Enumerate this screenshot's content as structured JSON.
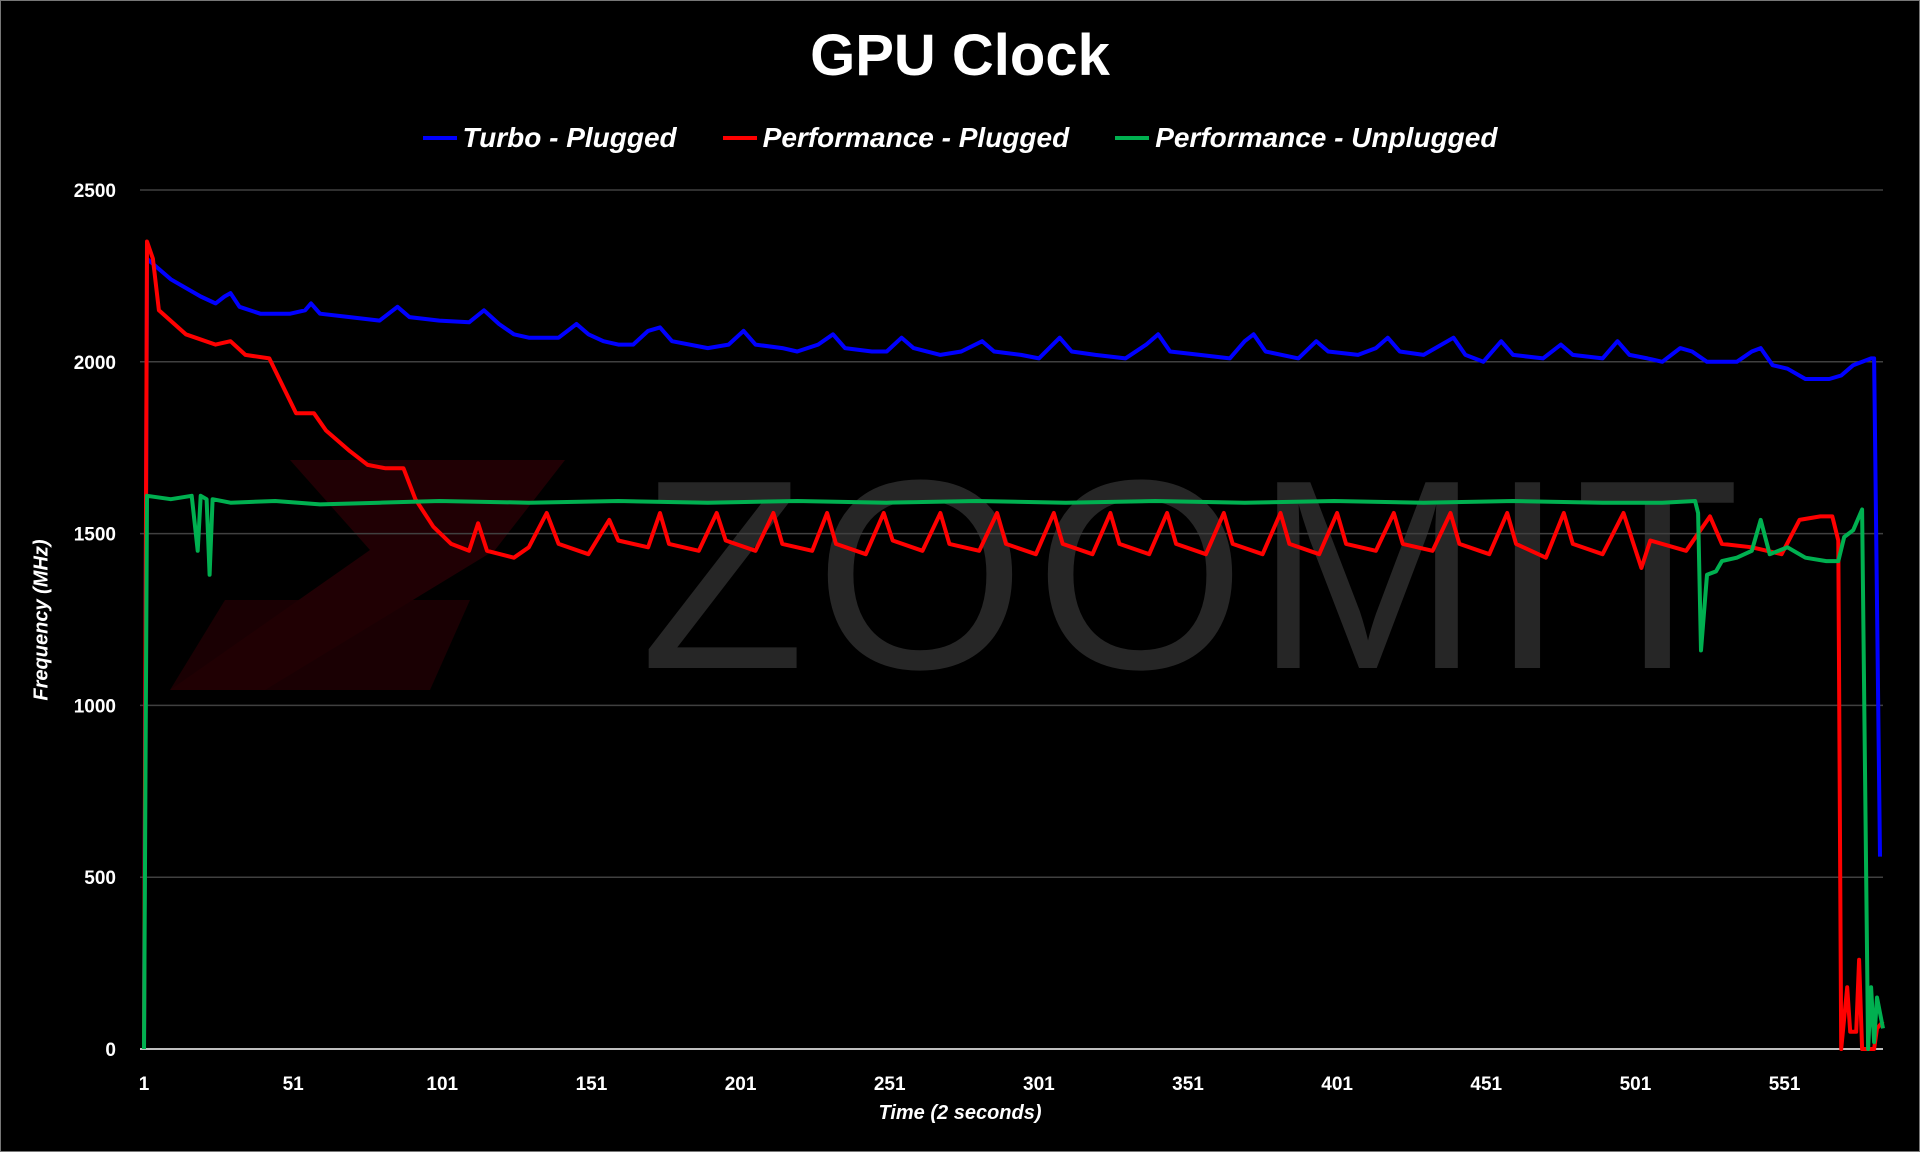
{
  "chart_data": {
    "type": "line",
    "title": "GPU Clock",
    "xlabel": "Time (2 seconds)",
    "ylabel": "Frequency (MHz)",
    "xlim": [
      1,
      584
    ],
    "ylim": [
      0,
      2500
    ],
    "x_ticks": [
      "1",
      "51",
      "101",
      "151",
      "201",
      "251",
      "301",
      "351",
      "401",
      "451",
      "501",
      "551"
    ],
    "y_ticks": [
      "0",
      "500",
      "1000",
      "1500",
      "2000",
      "2500"
    ],
    "grid": true,
    "legend_position": "top",
    "watermark": "ZOOMIT",
    "series": [
      {
        "name": "Turbo - Plugged",
        "color": "#0000ff",
        "points": [
          [
            1,
            0
          ],
          [
            2,
            2300
          ],
          [
            10,
            2240
          ],
          [
            20,
            2190
          ],
          [
            25,
            2170
          ],
          [
            28,
            2190
          ],
          [
            30,
            2200
          ],
          [
            33,
            2160
          ],
          [
            40,
            2140
          ],
          [
            50,
            2140
          ],
          [
            55,
            2150
          ],
          [
            57,
            2170
          ],
          [
            60,
            2140
          ],
          [
            70,
            2130
          ],
          [
            80,
            2120
          ],
          [
            86,
            2160
          ],
          [
            90,
            2130
          ],
          [
            100,
            2120
          ],
          [
            110,
            2115
          ],
          [
            115,
            2150
          ],
          [
            120,
            2110
          ],
          [
            125,
            2080
          ],
          [
            130,
            2070
          ],
          [
            140,
            2070
          ],
          [
            146,
            2110
          ],
          [
            150,
            2080
          ],
          [
            155,
            2060
          ],
          [
            160,
            2050
          ],
          [
            165,
            2050
          ],
          [
            170,
            2090
          ],
          [
            174,
            2100
          ],
          [
            178,
            2060
          ],
          [
            190,
            2040
          ],
          [
            197,
            2050
          ],
          [
            202,
            2090
          ],
          [
            206,
            2050
          ],
          [
            215,
            2040
          ],
          [
            220,
            2030
          ],
          [
            227,
            2050
          ],
          [
            232,
            2080
          ],
          [
            236,
            2040
          ],
          [
            245,
            2030
          ],
          [
            250,
            2030
          ],
          [
            255,
            2070
          ],
          [
            259,
            2040
          ],
          [
            268,
            2020
          ],
          [
            275,
            2030
          ],
          [
            282,
            2060
          ],
          [
            286,
            2030
          ],
          [
            295,
            2020
          ],
          [
            301,
            2010
          ],
          [
            308,
            2070
          ],
          [
            312,
            2030
          ],
          [
            320,
            2020
          ],
          [
            330,
            2010
          ],
          [
            337,
            2050
          ],
          [
            341,
            2080
          ],
          [
            345,
            2030
          ],
          [
            355,
            2020
          ],
          [
            365,
            2010
          ],
          [
            370,
            2060
          ],
          [
            373,
            2080
          ],
          [
            377,
            2030
          ],
          [
            388,
            2010
          ],
          [
            394,
            2060
          ],
          [
            398,
            2030
          ],
          [
            408,
            2020
          ],
          [
            414,
            2040
          ],
          [
            418,
            2070
          ],
          [
            422,
            2030
          ],
          [
            430,
            2020
          ],
          [
            436,
            2050
          ],
          [
            440,
            2070
          ],
          [
            444,
            2020
          ],
          [
            450,
            2000
          ],
          [
            456,
            2060
          ],
          [
            460,
            2020
          ],
          [
            470,
            2010
          ],
          [
            476,
            2050
          ],
          [
            480,
            2020
          ],
          [
            490,
            2010
          ],
          [
            495,
            2060
          ],
          [
            499,
            2020
          ],
          [
            505,
            2010
          ],
          [
            510,
            2000
          ],
          [
            516,
            2040
          ],
          [
            520,
            2030
          ],
          [
            525,
            2000
          ],
          [
            535,
            2000
          ],
          [
            540,
            2030
          ],
          [
            543,
            2040
          ],
          [
            547,
            1990
          ],
          [
            552,
            1980
          ],
          [
            558,
            1950
          ],
          [
            566,
            1950
          ],
          [
            570,
            1960
          ],
          [
            574,
            1990
          ],
          [
            580,
            2010
          ],
          [
            581,
            2010
          ],
          [
            583,
            560
          ]
        ]
      },
      {
        "name": "Performance - Plugged",
        "color": "#ff0000",
        "points": [
          [
            1,
            0
          ],
          [
            2,
            2350
          ],
          [
            4,
            2300
          ],
          [
            6,
            2150
          ],
          [
            15,
            2080
          ],
          [
            25,
            2050
          ],
          [
            30,
            2060
          ],
          [
            35,
            2020
          ],
          [
            43,
            2010
          ],
          [
            52,
            1850
          ],
          [
            58,
            1850
          ],
          [
            62,
            1800
          ],
          [
            70,
            1740
          ],
          [
            76,
            1700
          ],
          [
            82,
            1690
          ],
          [
            88,
            1690
          ],
          [
            92,
            1600
          ],
          [
            98,
            1520
          ],
          [
            104,
            1470
          ],
          [
            110,
            1450
          ],
          [
            113,
            1530
          ],
          [
            116,
            1450
          ],
          [
            125,
            1430
          ],
          [
            130,
            1460
          ],
          [
            136,
            1560
          ],
          [
            140,
            1470
          ],
          [
            150,
            1440
          ],
          [
            157,
            1540
          ],
          [
            160,
            1480
          ],
          [
            170,
            1460
          ],
          [
            174,
            1560
          ],
          [
            177,
            1470
          ],
          [
            187,
            1450
          ],
          [
            193,
            1560
          ],
          [
            196,
            1480
          ],
          [
            206,
            1450
          ],
          [
            212,
            1560
          ],
          [
            215,
            1470
          ],
          [
            225,
            1450
          ],
          [
            230,
            1560
          ],
          [
            233,
            1470
          ],
          [
            243,
            1440
          ],
          [
            249,
            1560
          ],
          [
            252,
            1480
          ],
          [
            262,
            1450
          ],
          [
            268,
            1560
          ],
          [
            271,
            1470
          ],
          [
            281,
            1450
          ],
          [
            287,
            1560
          ],
          [
            290,
            1470
          ],
          [
            300,
            1440
          ],
          [
            306,
            1560
          ],
          [
            309,
            1470
          ],
          [
            319,
            1440
          ],
          [
            325,
            1560
          ],
          [
            328,
            1470
          ],
          [
            338,
            1440
          ],
          [
            344,
            1560
          ],
          [
            347,
            1470
          ],
          [
            357,
            1440
          ],
          [
            363,
            1560
          ],
          [
            366,
            1470
          ],
          [
            376,
            1440
          ],
          [
            382,
            1560
          ],
          [
            385,
            1470
          ],
          [
            395,
            1440
          ],
          [
            401,
            1560
          ],
          [
            404,
            1470
          ],
          [
            414,
            1450
          ],
          [
            420,
            1560
          ],
          [
            423,
            1470
          ],
          [
            433,
            1450
          ],
          [
            439,
            1560
          ],
          [
            442,
            1470
          ],
          [
            452,
            1440
          ],
          [
            458,
            1560
          ],
          [
            461,
            1470
          ],
          [
            471,
            1430
          ],
          [
            477,
            1560
          ],
          [
            480,
            1470
          ],
          [
            490,
            1440
          ],
          [
            497,
            1560
          ],
          [
            500,
            1480
          ],
          [
            503,
            1400
          ],
          [
            506,
            1480
          ],
          [
            518,
            1450
          ],
          [
            526,
            1550
          ],
          [
            530,
            1470
          ],
          [
            540,
            1460
          ],
          [
            550,
            1440
          ],
          [
            556,
            1540
          ],
          [
            563,
            1550
          ],
          [
            567,
            1550
          ],
          [
            569,
            1480
          ],
          [
            570,
            0
          ],
          [
            572,
            180
          ],
          [
            573,
            50
          ],
          [
            575,
            50
          ],
          [
            576,
            260
          ],
          [
            577,
            0
          ],
          [
            581,
            0
          ],
          [
            582,
            60
          ],
          [
            584,
            80
          ]
        ]
      },
      {
        "name": "Performance - Unplugged",
        "color": "#00b050",
        "points": [
          [
            1,
            0
          ],
          [
            2,
            1610
          ],
          [
            10,
            1600
          ],
          [
            17,
            1610
          ],
          [
            19,
            1450
          ],
          [
            20,
            1610
          ],
          [
            22,
            1600
          ],
          [
            23,
            1380
          ],
          [
            24,
            1600
          ],
          [
            30,
            1590
          ],
          [
            45,
            1595
          ],
          [
            60,
            1585
          ],
          [
            80,
            1590
          ],
          [
            100,
            1595
          ],
          [
            130,
            1590
          ],
          [
            160,
            1595
          ],
          [
            190,
            1590
          ],
          [
            220,
            1595
          ],
          [
            250,
            1590
          ],
          [
            280,
            1595
          ],
          [
            310,
            1590
          ],
          [
            340,
            1595
          ],
          [
            370,
            1590
          ],
          [
            400,
            1595
          ],
          [
            430,
            1590
          ],
          [
            460,
            1595
          ],
          [
            490,
            1590
          ],
          [
            510,
            1590
          ],
          [
            521,
            1595
          ],
          [
            522,
            1560
          ],
          [
            523,
            1160
          ],
          [
            525,
            1380
          ],
          [
            528,
            1390
          ],
          [
            530,
            1420
          ],
          [
            535,
            1430
          ],
          [
            540,
            1450
          ],
          [
            543,
            1540
          ],
          [
            546,
            1440
          ],
          [
            552,
            1460
          ],
          [
            558,
            1430
          ],
          [
            565,
            1420
          ],
          [
            569,
            1420
          ],
          [
            571,
            1490
          ],
          [
            574,
            1510
          ],
          [
            577,
            1570
          ],
          [
            579,
            0
          ],
          [
            580,
            180
          ],
          [
            581,
            20
          ],
          [
            582,
            150
          ],
          [
            584,
            60
          ]
        ]
      }
    ]
  }
}
